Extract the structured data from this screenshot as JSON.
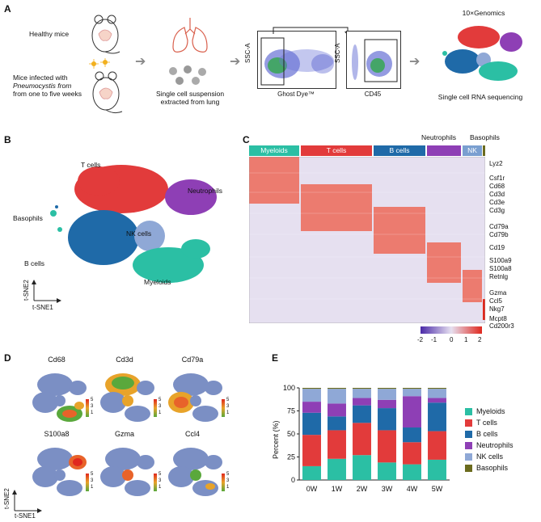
{
  "panels": {
    "A": "A",
    "B": "B",
    "C": "C",
    "D": "D",
    "E": "E"
  },
  "panelA": {
    "healthy": "Healthy mice",
    "infected_lines": [
      "Mice infected with",
      "Pneumocystis from",
      "from one to five weeks"
    ],
    "suspension_lines": [
      "Single cell suspension",
      "extracted from lung"
    ],
    "flow1_y": "SSC-A",
    "flow1_x": "Ghost Dye™",
    "flow2_y": "SSC-A",
    "flow2_x": "CD45",
    "genomics": "10×Genomics",
    "sequencing": "Single cell RNA sequencing"
  },
  "panelB": {
    "clusters": [
      "T cells",
      "Neutrophils",
      "Basophils",
      "NK cells",
      "B cells",
      "Myeloids"
    ],
    "axis_y": "t-SNE2",
    "axis_x": "t-SNE1"
  },
  "panelC": {
    "top_labels": [
      "Neutrophils",
      "Basophils"
    ],
    "banners": [
      {
        "label": "Myeloids",
        "color": "#2bbfa4"
      },
      {
        "label": "T cells",
        "color": "#e23b3b"
      },
      {
        "label": "B cells",
        "color": "#1f6aa8"
      },
      {
        "label": "",
        "color": "#8e3fb5"
      },
      {
        "label": "NK",
        "color": "#7a9fd0"
      },
      {
        "label": "",
        "color": "#6b6b1e"
      }
    ],
    "genes": [
      "Lyz2",
      "Csf1r",
      "Cd68",
      "Cd3d",
      "Cd3e",
      "Cd3g",
      "Cd79a",
      "Cd79b",
      "Cd19",
      "S100a9",
      "S100a8",
      "Retnlg",
      "Gzma",
      "Ccl5",
      "Nkg7",
      "Mcpt8",
      "Cd200r3"
    ],
    "scale_ticks": [
      "-2",
      "-1",
      "0",
      "1",
      "2"
    ],
    "scale_colors": {
      "low": "#4b2aa8",
      "mid": "#e6e0f0",
      "high": "#e0281e"
    }
  },
  "panelD": {
    "genes": [
      "Cd68",
      "Cd3d",
      "Cd79a",
      "S100a8",
      "Gzma",
      "Ccl4"
    ],
    "scale_ticks": [
      "5",
      "3",
      "1"
    ],
    "axis_y": "t-SNE2",
    "axis_x": "t-SNE1"
  },
  "chart_data": {
    "type": "bar",
    "stacked": true,
    "categories": [
      "0W",
      "1W",
      "2W",
      "3W",
      "4W",
      "5W"
    ],
    "ylabel": "Percent (%)",
    "xlabel": "",
    "ylim": [
      0,
      100
    ],
    "yticks": [
      "0",
      "25",
      "50",
      "75",
      "100"
    ],
    "series": [
      {
        "name": "Myeloids",
        "color": "#2bbfa4",
        "values": [
          15,
          23,
          27,
          19,
          17,
          22
        ]
      },
      {
        "name": "T cells",
        "color": "#e23b3b",
        "values": [
          34,
          31,
          35,
          35,
          24,
          31
        ]
      },
      {
        "name": "B cells",
        "color": "#1f6aa8",
        "values": [
          24,
          15,
          19,
          24,
          16,
          31
        ]
      },
      {
        "name": "Neutrophils",
        "color": "#8e3fb5",
        "values": [
          12,
          14,
          8,
          9,
          34,
          5
        ]
      },
      {
        "name": "NK cells",
        "color": "#8fa8d6",
        "values": [
          14,
          16,
          10,
          12,
          8,
          10
        ]
      },
      {
        "name": "Basophils",
        "color": "#6b6b1e",
        "values": [
          1,
          1,
          1,
          1,
          1,
          1
        ]
      }
    ]
  },
  "colors": {
    "myeloids": "#2bbfa4",
    "tcells": "#e23b3b",
    "bcells": "#1f6aa8",
    "neutrophils": "#8e3fb5",
    "nk": "#8fa8d6",
    "basophils": "#6b6b1e",
    "grey_cells": "#7b8fc4"
  }
}
